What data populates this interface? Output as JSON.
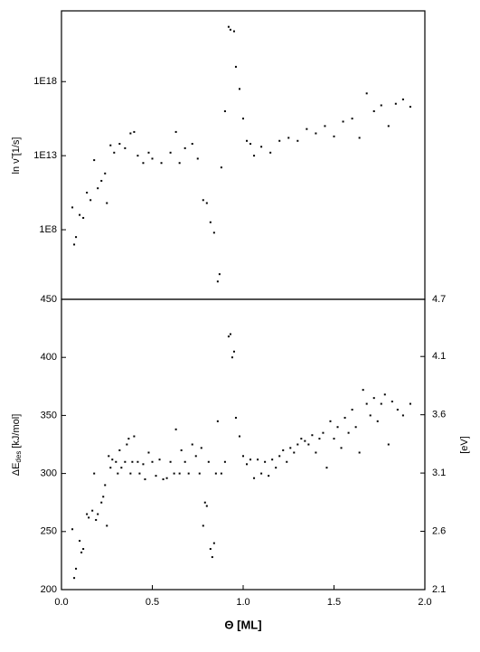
{
  "chart_data": [
    {
      "type": "scatter",
      "log_y": true,
      "y_label": "ln ν̃ [1/s]",
      "xlim": [
        0,
        2
      ],
      "ylim": [
        2000.0,
        6e+22
      ],
      "yticks": [
        {
          "value": 100000000.0,
          "label": "1E8"
        },
        {
          "value": 10000000000000.0,
          "label": "1E13"
        },
        {
          "value": 1e+18,
          "label": "1E18"
        }
      ],
      "color": "#000000",
      "x": [
        0.06,
        0.07,
        0.08,
        0.1,
        0.12,
        0.14,
        0.16,
        0.18,
        0.2,
        0.22,
        0.24,
        0.25,
        0.27,
        0.29,
        0.32,
        0.35,
        0.38,
        0.4,
        0.42,
        0.45,
        0.48,
        0.5,
        0.55,
        0.6,
        0.63,
        0.65,
        0.68,
        0.72,
        0.75,
        0.78,
        0.8,
        0.82,
        0.84,
        0.86,
        0.87,
        0.88,
        0.9,
        0.92,
        0.93,
        0.95,
        0.96,
        0.98,
        1.0,
        1.02,
        1.04,
        1.06,
        1.1,
        1.15,
        1.2,
        1.25,
        1.3,
        1.35,
        1.4,
        1.45,
        1.5,
        1.55,
        1.6,
        1.64,
        1.68,
        1.72,
        1.76,
        1.8,
        1.84,
        1.88,
        1.92
      ],
      "values": [
        3200000000.0,
        10000000.0,
        32000000.0,
        1000000000.0,
        630000000.0,
        32000000000.0,
        10000000000.0,
        5000000000000.0,
        63000000000.0,
        200000000000.0,
        630000000000.0,
        6300000000.0,
        50000000000000.0,
        16000000000000.0,
        63000000000000.0,
        32000000000000.0,
        320000000000000.0,
        400000000000000.0,
        10000000000000.0,
        3200000000000.0,
        16000000000000.0,
        6300000000000.0,
        3200000000000.0,
        16000000000000.0,
        400000000000000.0,
        3200000000000.0,
        32000000000000.0,
        63000000000000.0,
        6300000000000.0,
        10000000000.0,
        6300000000.0,
        320000000.0,
        63000000.0,
        32000.0,
        100000.0,
        1600000000000.0,
        1e+16,
        5e+21,
        3.2e+21,
        2.5e+21,
        1e+19,
        3.2e+17,
        3200000000000000.0,
        100000000000000.0,
        63000000000000.0,
        10000000000000.0,
        40000000000000.0,
        16000000000000.0,
        100000000000000.0,
        160000000000000.0,
        100000000000000.0,
        630000000000000.0,
        320000000000000.0,
        1000000000000000.0,
        200000000000000.0,
        2000000000000000.0,
        3200000000000000.0,
        160000000000000.0,
        1.6e+17,
        1e+16,
        2.5e+16,
        1000000000000000.0,
        3.2e+16,
        6.3e+16,
        2e+16
      ]
    },
    {
      "type": "scatter",
      "y_label": {
        "main": "ΔE",
        "sub": "des",
        "unit": " [kJ/mol]"
      },
      "y2_label": "[eV]",
      "x_label": "Θ [ML]",
      "xlim": [
        0,
        2
      ],
      "xticks": [
        {
          "value": 0,
          "label": "0.0"
        },
        0.5,
        {
          "value": 1,
          "label": "1.0"
        },
        1.5,
        {
          "value": 2,
          "label": "2.0"
        }
      ],
      "ylim": [
        200,
        450
      ],
      "yticks": [
        200,
        250,
        300,
        350,
        400,
        450
      ],
      "y2lim": [
        2.07,
        4.66
      ],
      "y2ticks": [
        {
          "value": 2.07,
          "label": "2.1"
        },
        {
          "value": 2.59,
          "label": "2.6"
        },
        {
          "value": 3.11,
          "label": "3.1"
        },
        {
          "value": 3.63,
          "label": "3.6"
        },
        {
          "value": 4.15,
          "label": "4.1"
        },
        {
          "value": 4.66,
          "label": "4.7"
        }
      ],
      "color": "#000000",
      "x": [
        0.06,
        0.07,
        0.08,
        0.1,
        0.11,
        0.12,
        0.14,
        0.15,
        0.17,
        0.18,
        0.19,
        0.2,
        0.22,
        0.23,
        0.24,
        0.25,
        0.26,
        0.27,
        0.28,
        0.3,
        0.31,
        0.32,
        0.33,
        0.35,
        0.36,
        0.37,
        0.38,
        0.39,
        0.4,
        0.42,
        0.43,
        0.45,
        0.46,
        0.48,
        0.5,
        0.52,
        0.54,
        0.56,
        0.58,
        0.6,
        0.62,
        0.63,
        0.65,
        0.66,
        0.68,
        0.7,
        0.72,
        0.74,
        0.76,
        0.77,
        0.78,
        0.79,
        0.8,
        0.81,
        0.82,
        0.83,
        0.84,
        0.85,
        0.86,
        0.88,
        0.9,
        0.92,
        0.93,
        0.94,
        0.95,
        0.96,
        0.98,
        1.0,
        1.02,
        1.04,
        1.06,
        1.08,
        1.1,
        1.12,
        1.14,
        1.16,
        1.18,
        1.2,
        1.22,
        1.24,
        1.26,
        1.28,
        1.3,
        1.32,
        1.34,
        1.36,
        1.38,
        1.4,
        1.42,
        1.44,
        1.46,
        1.48,
        1.5,
        1.52,
        1.54,
        1.56,
        1.58,
        1.6,
        1.62,
        1.64,
        1.66,
        1.68,
        1.7,
        1.72,
        1.74,
        1.76,
        1.78,
        1.8,
        1.82,
        1.85,
        1.88,
        1.92
      ],
      "values": [
        252,
        210,
        218,
        242,
        232,
        235,
        265,
        262,
        268,
        300,
        260,
        265,
        275,
        280,
        290,
        255,
        315,
        305,
        312,
        310,
        300,
        320,
        305,
        310,
        325,
        330,
        300,
        310,
        332,
        310,
        300,
        308,
        295,
        318,
        310,
        298,
        312,
        295,
        296,
        310,
        300,
        338,
        300,
        320,
        310,
        300,
        325,
        315,
        300,
        322,
        255,
        275,
        272,
        310,
        235,
        228,
        240,
        300,
        345,
        300,
        310,
        418,
        420,
        400,
        405,
        348,
        332,
        315,
        308,
        312,
        296,
        312,
        300,
        310,
        298,
        312,
        305,
        315,
        320,
        310,
        322,
        318,
        325,
        330,
        328,
        325,
        333,
        318,
        330,
        335,
        305,
        345,
        330,
        340,
        322,
        348,
        335,
        355,
        340,
        318,
        372,
        360,
        350,
        365,
        345,
        360,
        368,
        325,
        362,
        355,
        350,
        360
      ]
    }
  ]
}
